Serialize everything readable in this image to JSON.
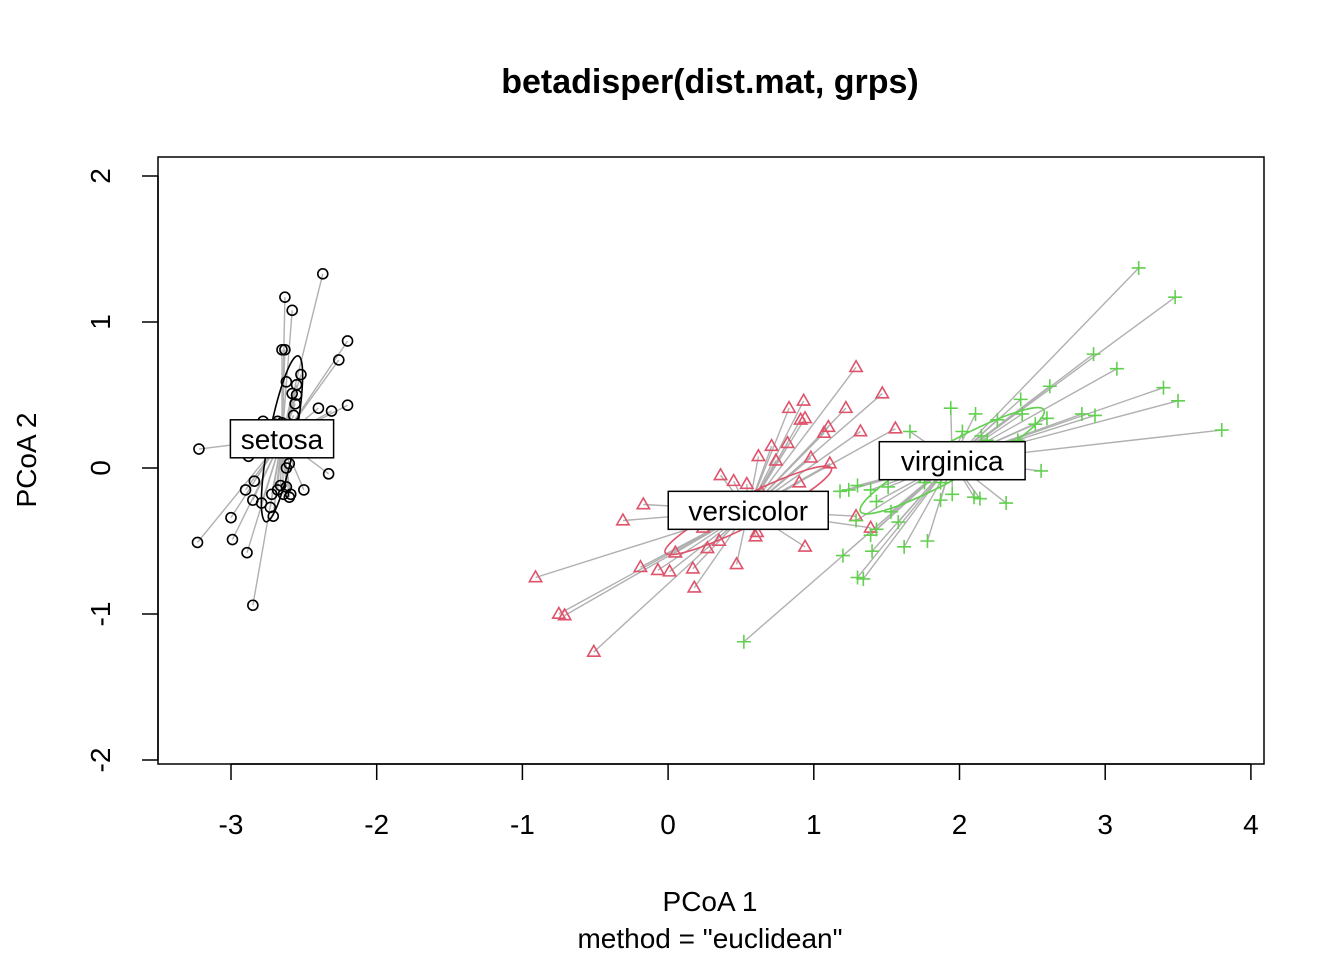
{
  "chart_data": {
    "type": "scatter",
    "title": "betadisper(dist.mat, grps)",
    "xlabel": "PCoA 1",
    "ylabel": "PCoA 2",
    "subtitle": "method = \"euclidean\"",
    "xlim": [
      -3.5,
      4.05
    ],
    "ylim": [
      -2.1,
      2.1
    ],
    "xticks": [
      -3,
      -2,
      -1,
      0,
      1,
      2,
      3,
      4
    ],
    "xtick_labels": [
      "-3",
      "-2",
      "-1",
      "0",
      "1",
      "2",
      "3",
      "4"
    ],
    "yticks": [
      -2,
      -1,
      0,
      1,
      2
    ],
    "ytick_labels": [
      "-2",
      "-1",
      "0",
      "1",
      "2"
    ],
    "segment_color": "#b0b0b0",
    "series": [
      {
        "name": "setosa",
        "marker": "circle",
        "color": "#000000",
        "centroid": [
          -2.65,
          0.2
        ],
        "ellipse": {
          "rx": 0.58,
          "ry": 0.09,
          "angle_deg": 79
        },
        "points": [
          [
            -2.37,
            1.33
          ],
          [
            -2.63,
            1.17
          ],
          [
            -2.58,
            1.08
          ],
          [
            -2.63,
            0.81
          ],
          [
            -2.65,
            0.81
          ],
          [
            -2.2,
            0.87
          ],
          [
            -2.26,
            0.74
          ],
          [
            -2.52,
            0.64
          ],
          [
            -2.62,
            0.59
          ],
          [
            -2.55,
            0.57
          ],
          [
            -2.58,
            0.51
          ],
          [
            -2.55,
            0.5
          ],
          [
            -2.56,
            0.44
          ],
          [
            -2.4,
            0.41
          ],
          [
            -2.31,
            0.39
          ],
          [
            -2.2,
            0.43
          ],
          [
            -2.57,
            0.36
          ],
          [
            -2.68,
            0.32
          ],
          [
            -2.7,
            0.3
          ],
          [
            -2.65,
            0.31
          ],
          [
            -2.78,
            0.32
          ],
          [
            -2.72,
            0.28
          ],
          [
            -2.88,
            0.26
          ],
          [
            -2.95,
            0.2
          ],
          [
            -2.75,
            0.24
          ],
          [
            -2.84,
            0.15
          ],
          [
            -2.88,
            0.08
          ],
          [
            -2.62,
            0.0
          ],
          [
            -2.6,
            0.03
          ],
          [
            -2.33,
            -0.04
          ],
          [
            -3.22,
            0.13
          ],
          [
            -2.84,
            -0.09
          ],
          [
            -2.66,
            -0.12
          ],
          [
            -2.68,
            -0.15
          ],
          [
            -2.64,
            -0.18
          ],
          [
            -2.59,
            -0.18
          ],
          [
            -2.5,
            -0.15
          ],
          [
            -2.72,
            -0.18
          ],
          [
            -2.9,
            -0.15
          ],
          [
            -2.85,
            -0.22
          ],
          [
            -2.79,
            -0.24
          ],
          [
            -2.73,
            -0.27
          ],
          [
            -2.71,
            -0.33
          ],
          [
            -3.0,
            -0.34
          ],
          [
            -2.6,
            -0.2
          ],
          [
            -3.23,
            -0.51
          ],
          [
            -2.99,
            -0.49
          ],
          [
            -2.89,
            -0.58
          ],
          [
            -2.85,
            -0.94
          ],
          [
            -2.62,
            -0.13
          ]
        ]
      },
      {
        "name": "versicolor",
        "marker": "triangle",
        "color": "#DF536B",
        "centroid": [
          0.55,
          -0.29
        ],
        "ellipse": {
          "rx": 0.64,
          "ry": 0.1,
          "angle_deg": 27
        },
        "points": [
          [
            1.29,
            0.69
          ],
          [
            1.47,
            0.51
          ],
          [
            0.93,
            0.46
          ],
          [
            0.83,
            0.41
          ],
          [
            1.22,
            0.41
          ],
          [
            0.94,
            0.34
          ],
          [
            0.91,
            0.33
          ],
          [
            1.1,
            0.28
          ],
          [
            1.56,
            0.27
          ],
          [
            0.71,
            0.15
          ],
          [
            0.82,
            0.17
          ],
          [
            1.07,
            0.24
          ],
          [
            1.32,
            0.25
          ],
          [
            0.62,
            0.08
          ],
          [
            0.98,
            0.07
          ],
          [
            1.11,
            0.03
          ],
          [
            0.74,
            0.05
          ],
          [
            0.36,
            -0.05
          ],
          [
            0.45,
            -0.09
          ],
          [
            0.9,
            -0.1
          ],
          [
            0.54,
            -0.11
          ],
          [
            -0.17,
            -0.25
          ],
          [
            0.64,
            -0.17
          ],
          [
            0.33,
            -0.21
          ],
          [
            0.67,
            -0.27
          ],
          [
            0.75,
            -0.28
          ],
          [
            1.29,
            -0.33
          ],
          [
            0.36,
            -0.31
          ],
          [
            -0.31,
            -0.36
          ],
          [
            0.27,
            -0.37
          ],
          [
            0.24,
            -0.41
          ],
          [
            1.39,
            -0.41
          ],
          [
            0.61,
            -0.44
          ],
          [
            0.6,
            -0.47
          ],
          [
            0.35,
            -0.5
          ],
          [
            0.94,
            -0.54
          ],
          [
            0.27,
            -0.55
          ],
          [
            0.05,
            -0.58
          ],
          [
            0.47,
            -0.66
          ],
          [
            -0.19,
            -0.68
          ],
          [
            0.17,
            -0.69
          ],
          [
            -0.07,
            -0.7
          ],
          [
            0.01,
            -0.71
          ],
          [
            -0.91,
            -0.75
          ],
          [
            0.18,
            -0.82
          ],
          [
            -0.75,
            -1.0
          ],
          [
            -0.71,
            -1.01
          ],
          [
            -0.51,
            -1.26
          ],
          [
            0.23,
            -0.35
          ],
          [
            0.46,
            -0.34
          ]
        ]
      },
      {
        "name": "virginica",
        "marker": "plus",
        "color": "#61D04F",
        "centroid": [
          1.95,
          0.05
        ],
        "ellipse": {
          "rx": 0.72,
          "ry": 0.12,
          "angle_deg": 29
        },
        "points": [
          [
            3.23,
            1.37
          ],
          [
            3.48,
            1.17
          ],
          [
            2.92,
            0.78
          ],
          [
            3.08,
            0.68
          ],
          [
            2.62,
            0.56
          ],
          [
            3.4,
            0.55
          ],
          [
            3.5,
            0.46
          ],
          [
            2.42,
            0.47
          ],
          [
            2.43,
            0.37
          ],
          [
            1.94,
            0.41
          ],
          [
            2.11,
            0.37
          ],
          [
            2.84,
            0.37
          ],
          [
            2.93,
            0.36
          ],
          [
            2.52,
            0.3
          ],
          [
            2.6,
            0.34
          ],
          [
            2.26,
            0.33
          ],
          [
            3.8,
            0.26
          ],
          [
            2.15,
            0.22
          ],
          [
            1.66,
            0.25
          ],
          [
            2.19,
            0.19
          ],
          [
            2.4,
            0.19
          ],
          [
            2.05,
            0.07
          ],
          [
            2.56,
            -0.02
          ],
          [
            1.76,
            -0.1
          ],
          [
            1.51,
            -0.13
          ],
          [
            1.3,
            -0.12
          ],
          [
            1.39,
            -0.15
          ],
          [
            1.24,
            -0.15
          ],
          [
            1.18,
            -0.16
          ],
          [
            1.95,
            -0.18
          ],
          [
            2.1,
            -0.2
          ],
          [
            2.14,
            -0.21
          ],
          [
            1.87,
            -0.22
          ],
          [
            1.43,
            -0.23
          ],
          [
            2.32,
            -0.24
          ],
          [
            1.53,
            -0.3
          ],
          [
            1.29,
            -0.36
          ],
          [
            1.58,
            -0.37
          ],
          [
            1.43,
            -0.42
          ],
          [
            1.39,
            -0.46
          ],
          [
            1.78,
            -0.5
          ],
          [
            1.62,
            -0.54
          ],
          [
            1.4,
            -0.57
          ],
          [
            1.2,
            -0.6
          ],
          [
            1.3,
            -0.75
          ],
          [
            1.34,
            -0.76
          ],
          [
            0.52,
            -1.19
          ],
          [
            1.87,
            -0.1
          ],
          [
            2.02,
            0.25
          ],
          [
            1.73,
            -0.05
          ]
        ]
      }
    ]
  }
}
